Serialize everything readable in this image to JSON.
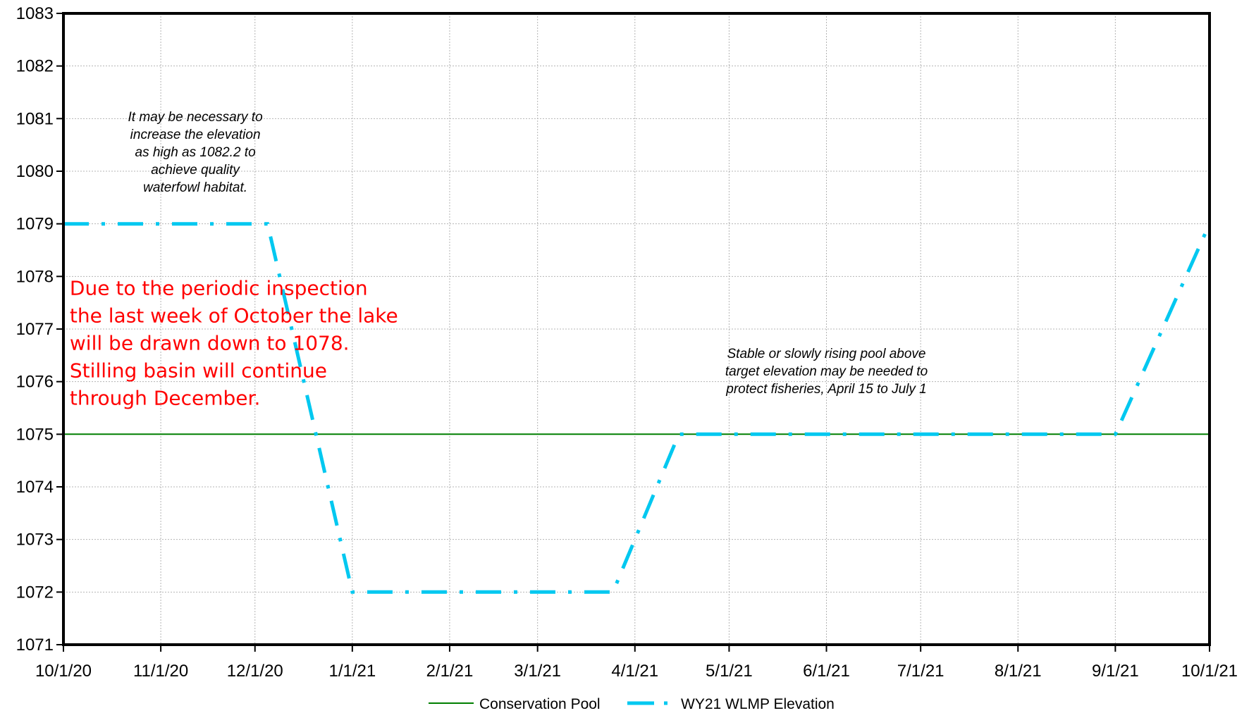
{
  "chart_data": {
    "type": "line",
    "title": "",
    "xlabel": "",
    "ylabel": "",
    "x_tick_labels": [
      "10/1/20",
      "11/1/20",
      "12/1/20",
      "1/1/21",
      "2/1/21",
      "3/1/21",
      "4/1/21",
      "5/1/21",
      "6/1/21",
      "7/1/21",
      "8/1/21",
      "9/1/21",
      "10/1/21"
    ],
    "x_range": [
      "2020-10-01",
      "2021-10-01"
    ],
    "ylim": [
      1071,
      1083
    ],
    "y_ticks": [
      1071,
      1072,
      1073,
      1074,
      1075,
      1076,
      1077,
      1078,
      1079,
      1080,
      1081,
      1082,
      1083
    ],
    "grid": true,
    "legend_position": "bottom-center",
    "series": [
      {
        "name": "Conservation Pool",
        "color": "#007f00",
        "style": "solid",
        "x": [
          "2020-10-01",
          "2021-10-01"
        ],
        "y": [
          1075,
          1075
        ]
      },
      {
        "name": "WY21 WLMP Elevation",
        "color": "#00c8f0",
        "style": "dash-dot",
        "x": [
          "2020-10-01",
          "2020-12-05",
          "2021-01-01",
          "2021-03-25",
          "2021-04-15",
          "2021-09-01",
          "2021-10-01"
        ],
        "y": [
          1079,
          1079,
          1072,
          1072,
          1075,
          1075,
          1079
        ]
      }
    ],
    "annotations": [
      {
        "id": "waterfowl",
        "lines": [
          "It may be necessary to",
          "increase the elevation",
          "as high as 1082.2 to",
          "achieve quality",
          "waterfowl habitat."
        ],
        "anchor_x": "2020-11-12",
        "anchor_y": 1080.95
      },
      {
        "id": "fisheries",
        "lines": [
          "Stable or slowly rising pool above",
          "target elevation may be needed to",
          "protect fisheries, April 15 to July 1"
        ],
        "anchor_x": "2021-06-01",
        "anchor_y": 1076.45
      },
      {
        "id": "inspection",
        "lines": [
          "Due to the periodic inspection",
          "the last week of October the lake",
          "will be drawn down to 1078.",
          "Stilling basin will continue",
          "through December."
        ],
        "anchor_x": "2020-10-03",
        "anchor_y": 1077.65
      }
    ]
  }
}
